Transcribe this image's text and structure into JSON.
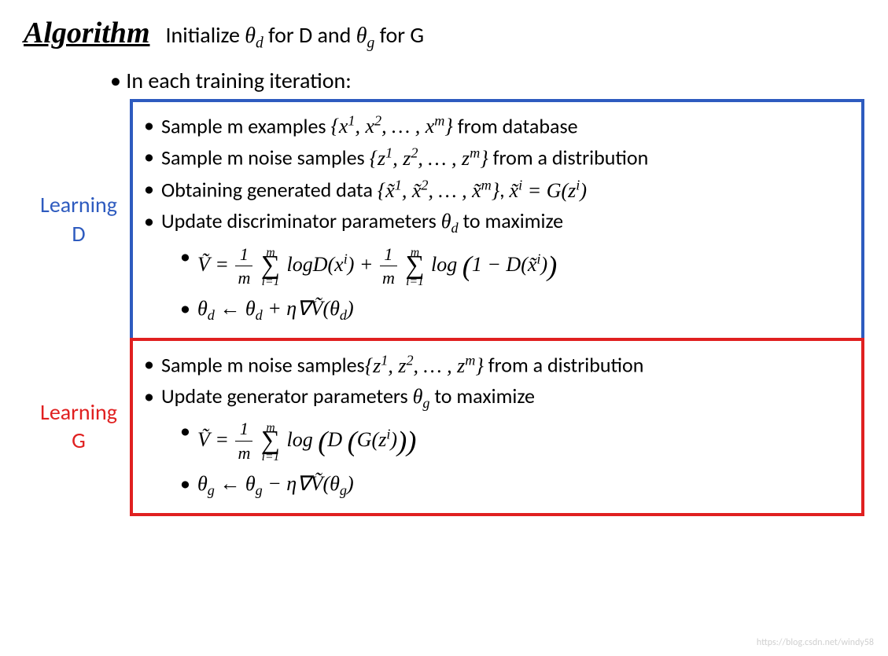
{
  "header": {
    "title": "Algorithm",
    "init_html": "Initialize <span class='math'>θ<sub>d</sub></span> for D and <span class='math'>θ<sub>g</sub></span> for G"
  },
  "iteration_line": "In each training iteration:",
  "sections": {
    "D": {
      "label_line1": "Learning",
      "label_line2": "D",
      "label_color": "#2e5bbf",
      "border_color": "#2e5bbf",
      "items": [
        "Sample m examples <span class='math'>{x<sup>1</sup>, x<sup>2</sup>, … , x<sup>m</sup>}</span> from database",
        "Sample m noise samples <span class='math'>{z<sup>1</sup>, z<sup>2</sup>, … , z<sup>m</sup>}</span> from a distribution",
        "Obtaining generated data <span class='math'>{x̃<sup>1</sup>, x̃<sup>2</sup>, … , x̃<sup>m</sup>}</span>, <span class='math'>x̃<sup>i</sup> = G(z<sup>i</sup>)</span>",
        "Update discriminator parameters <span class='math'>θ<sub>d</sub></span> to maximize"
      ],
      "sub_items": [
        "<span class='math'>Ṽ = <span class='frac'><span class='num'>1</span><span class='den'>m</span></span> <span class='sum'><span class='top'>m</span><span class='sig'>∑</span><span class='bot'>i=1</span></span> logD(x<sup>i</sup>) + <span class='frac'><span class='num'>1</span><span class='den'>m</span></span> <span class='sum'><span class='top'>m</span><span class='sig'>∑</span><span class='bot'>i=1</span></span> log <span class='bigp'>(</span>1 − D(x̃<sup>i</sup>)<span class='bigp'>)</span></span>",
        "<span class='math'>θ<sub>d</sub> ← θ<sub>d</sub> + η∇Ṽ(θ<sub>d</sub>)</span>"
      ]
    },
    "G": {
      "label_line1": "Learning",
      "label_line2": "G",
      "label_color": "#e02020",
      "border_color": "#e02020",
      "items": [
        "Sample m noise samples<span class='math'>{z<sup>1</sup>, z<sup>2</sup>, … , z<sup>m</sup>}</span> from a distribution",
        "Update generator parameters <span class='math'>θ<sub>g</sub></span> to maximize"
      ],
      "sub_items": [
        "<span class='math'>Ṽ = <span class='frac'><span class='num'>1</span><span class='den'>m</span></span> <span class='sum'><span class='top'>m</span><span class='sig'>∑</span><span class='bot'>i=1</span></span> log <span class='bigp'>(</span>D <span class='bigp'>(</span>G(z<sup>i</sup>)<span class='bigp'>)</span><span class='bigp'>)</span></span>",
        "<span class='math'>θ<sub>g</sub> ← θ<sub>g</sub> − η∇Ṽ(θ<sub>g</sub>)</span>"
      ]
    }
  },
  "watermark": "https://blog.csdn.net/windy58",
  "style": {
    "body_bg": "#ffffff",
    "text_color": "#000000",
    "title_fontsize": 38,
    "body_fontsize": 28,
    "box_fontsize": 26,
    "watermark_color": "#d0d0d0",
    "border_width": 4
  }
}
